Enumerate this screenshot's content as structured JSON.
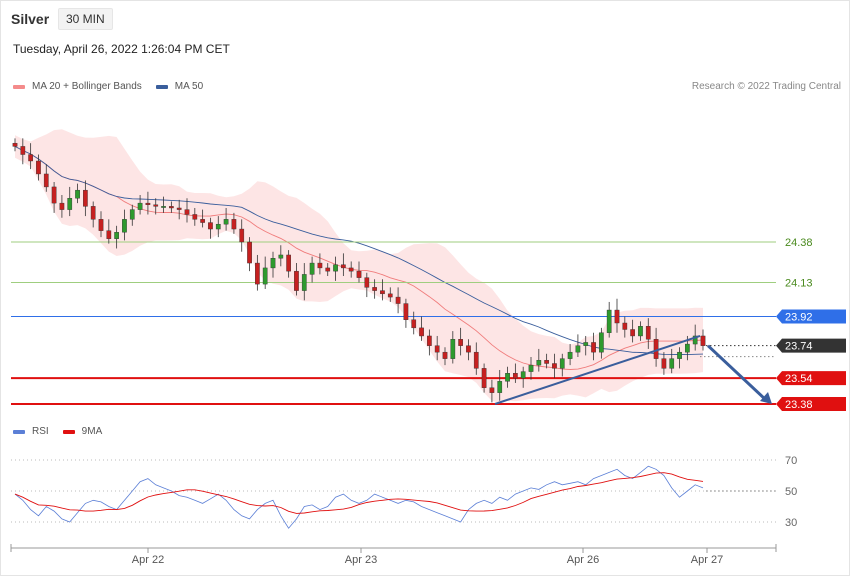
{
  "header": {
    "symbol": "Silver",
    "timeframe": "30 MIN",
    "datetime": "Tuesday, April 26, 2022 1:26:04 PM CET"
  },
  "legend_price": [
    {
      "label": "MA 20 + Bollinger Bands",
      "color": "#f48b8b"
    },
    {
      "label": "MA 50",
      "color": "#3a5e9c"
    }
  ],
  "legend_rsi": [
    {
      "label": "RSI",
      "color": "#5b7fd6"
    },
    {
      "label": "9MA",
      "color": "#e01010"
    }
  ],
  "credit": "Research © 2022 Trading Central",
  "chart_data": {
    "type": "candlestick",
    "x_ticks": [
      "Apr 22",
      "Apr 23",
      "Apr 26",
      "Apr 27"
    ],
    "price_levels": [
      {
        "label": "24.38",
        "value": 24.38,
        "style": "green-line",
        "color": "#9fce7f"
      },
      {
        "label": "24.13",
        "value": 24.13,
        "style": "green-line",
        "color": "#9fce7f"
      },
      {
        "label": "23.92",
        "value": 23.92,
        "style": "resistance",
        "color": "#2f6fe8"
      },
      {
        "label": "23.74",
        "value": 23.74,
        "style": "last-price",
        "color": "#333333"
      },
      {
        "label": "23.54",
        "value": 23.54,
        "style": "support",
        "color": "#e01010"
      },
      {
        "label": "23.38",
        "value": 23.38,
        "style": "support",
        "color": "#e01010"
      }
    ],
    "close_series": [
      24.97,
      24.92,
      24.88,
      24.8,
      24.72,
      24.62,
      24.58,
      24.65,
      24.7,
      24.6,
      24.52,
      24.45,
      24.4,
      24.44,
      24.52,
      24.58,
      24.62,
      24.61,
      24.6,
      24.6,
      24.59,
      24.58,
      24.55,
      24.52,
      24.5,
      24.46,
      24.49,
      24.52,
      24.46,
      24.38,
      24.25,
      24.12,
      24.22,
      24.28,
      24.3,
      24.2,
      24.08,
      24.18,
      24.25,
      24.22,
      24.2,
      24.24,
      24.22,
      24.2,
      24.16,
      24.1,
      24.08,
      24.06,
      24.04,
      24.0,
      23.9,
      23.85,
      23.8,
      23.74,
      23.7,
      23.66,
      23.78,
      23.74,
      23.7,
      23.6,
      23.48,
      23.45,
      23.52,
      23.57,
      23.54,
      23.58,
      23.62,
      23.65,
      23.63,
      23.6,
      23.66,
      23.7,
      23.74,
      23.76,
      23.7,
      23.82,
      23.96,
      23.88,
      23.84,
      23.8,
      23.86,
      23.78,
      23.66,
      23.6,
      23.66,
      23.7,
      23.75,
      23.8,
      23.74
    ],
    "ma20_band": {
      "upper_max": 25.05,
      "lower_min": 23.46
    },
    "trendline": {
      "from": 23.38,
      "to": 23.8
    },
    "projection": {
      "from": 23.74,
      "to": 23.38
    },
    "rsi": {
      "levels": [
        70,
        50,
        30
      ],
      "series": [
        48,
        44,
        38,
        34,
        40,
        37,
        32,
        30,
        36,
        42,
        44,
        43,
        40,
        38,
        44,
        50,
        56,
        58,
        54,
        52,
        50,
        47,
        46,
        44,
        42,
        45,
        48,
        44,
        38,
        34,
        32,
        38,
        42,
        44,
        34,
        26,
        32,
        40,
        41,
        38,
        40,
        46,
        48,
        44,
        42,
        44,
        48,
        46,
        44,
        42,
        44,
        43,
        40,
        38,
        36,
        34,
        32,
        30,
        38,
        42,
        44,
        42,
        46,
        44,
        48,
        50,
        52,
        51,
        54,
        56,
        54,
        55,
        56,
        54,
        58,
        60,
        62,
        64,
        60,
        58,
        62,
        66,
        64,
        60,
        52,
        46,
        50,
        54,
        52
      ]
    }
  }
}
